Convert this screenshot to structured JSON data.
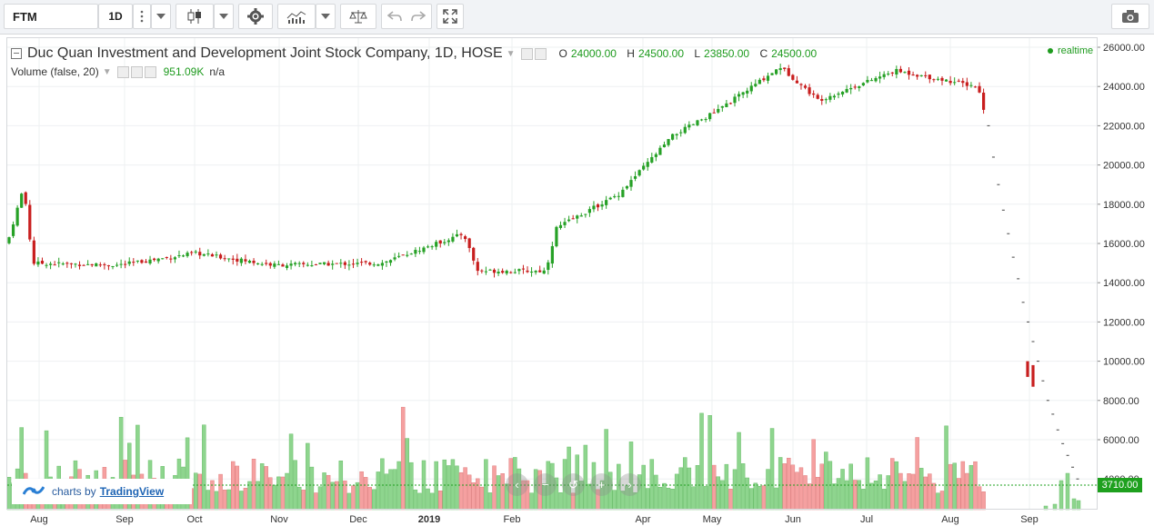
{
  "toolbar": {
    "symbol": "FTM",
    "interval": "1D",
    "icons": [
      "more-icon",
      "chevron-down-icon",
      "candlestick-icon",
      "gear-icon",
      "indicators-icon",
      "compare-icon",
      "undo-icon",
      "redo-icon",
      "fullscreen-icon",
      "camera-icon"
    ]
  },
  "legend": {
    "title": "Duc Quan Investment and Development Joint Stock Company, 1D, HOSE",
    "o_label": "O",
    "o": "24000.00",
    "h_label": "H",
    "h": "24500.00",
    "l_label": "L",
    "l": "23850.00",
    "c_label": "C",
    "c": "24500.00",
    "volume_label": "Volume (false, 20)",
    "volume_value": "951.09K",
    "volume_extra": "n/a",
    "realtime": "realtime"
  },
  "branding": {
    "prefix": "charts by",
    "name": "TradingView"
  },
  "last_price_tag": "3710.00",
  "nav_icons": [
    "chevron-left-icon",
    "zoom-out-icon",
    "reset-icon",
    "zoom-in-icon",
    "chevron-right-icon"
  ],
  "colors": {
    "up": "#26a126",
    "down": "#c81e1e",
    "up_volume": "#8ed58e",
    "down_volume": "#f5a0a0",
    "accent": "#1ea01e"
  },
  "chart_data": {
    "type": "candlestick",
    "title": "Duc Quan Investment and Development Joint Stock Company, 1D, HOSE",
    "y_axis": {
      "ticks": [
        "26000.00",
        "24000.00",
        "22000.00",
        "20000.00",
        "18000.00",
        "16000.00",
        "14000.00",
        "12000.00",
        "10000.00",
        "8000.00",
        "6000.00",
        "4000.00"
      ],
      "range": [
        4000,
        26000
      ],
      "position": "right"
    },
    "x_axis": {
      "ticks": [
        "Aug",
        "Sep",
        "Oct",
        "Nov",
        "Dec",
        "2019",
        "Feb",
        "Apr",
        "May",
        "Jun",
        "Jul",
        "Aug",
        "Sep"
      ]
    },
    "grid": true,
    "legend_position": "top-left",
    "price_path": [
      {
        "date": "Aug 2018",
        "price": 16000
      },
      {
        "date": "Aug 2018",
        "price": 18900
      },
      {
        "date": "Aug 2018",
        "price": 15000
      },
      {
        "date": "Sep 2018",
        "price": 14900
      },
      {
        "date": "Oct 2018",
        "price": 15500
      },
      {
        "date": "Nov 2018",
        "price": 14900
      },
      {
        "date": "Dec 2018",
        "price": 15000
      },
      {
        "date": "Jan 2019",
        "price": 16500
      },
      {
        "date": "Feb 2019",
        "price": 14600
      },
      {
        "date": "Mar 2019",
        "price": 14600
      },
      {
        "date": "Mar 2019",
        "price": 16800
      },
      {
        "date": "Apr 2019",
        "price": 18500
      },
      {
        "date": "Apr 2019",
        "price": 21500
      },
      {
        "date": "May 2019",
        "price": 22800
      },
      {
        "date": "May 2019",
        "price": 25000
      },
      {
        "date": "Jun 2019",
        "price": 23300
      },
      {
        "date": "Jul 2019",
        "price": 24800
      },
      {
        "date": "Aug 2019",
        "price": 24000
      },
      {
        "date": "Aug 2019",
        "price": 22000
      }
    ],
    "projection_path": [
      22000,
      20400,
      19000,
      17700,
      16500,
      15300,
      14200,
      13000,
      12000,
      11000,
      10000,
      9000,
      8000,
      7300,
      6500,
      5800,
      5200,
      4600,
      4000
    ],
    "volume": {
      "name": "Volume (false, 20)",
      "last": "951.09K"
    },
    "last_value": 3710
  }
}
